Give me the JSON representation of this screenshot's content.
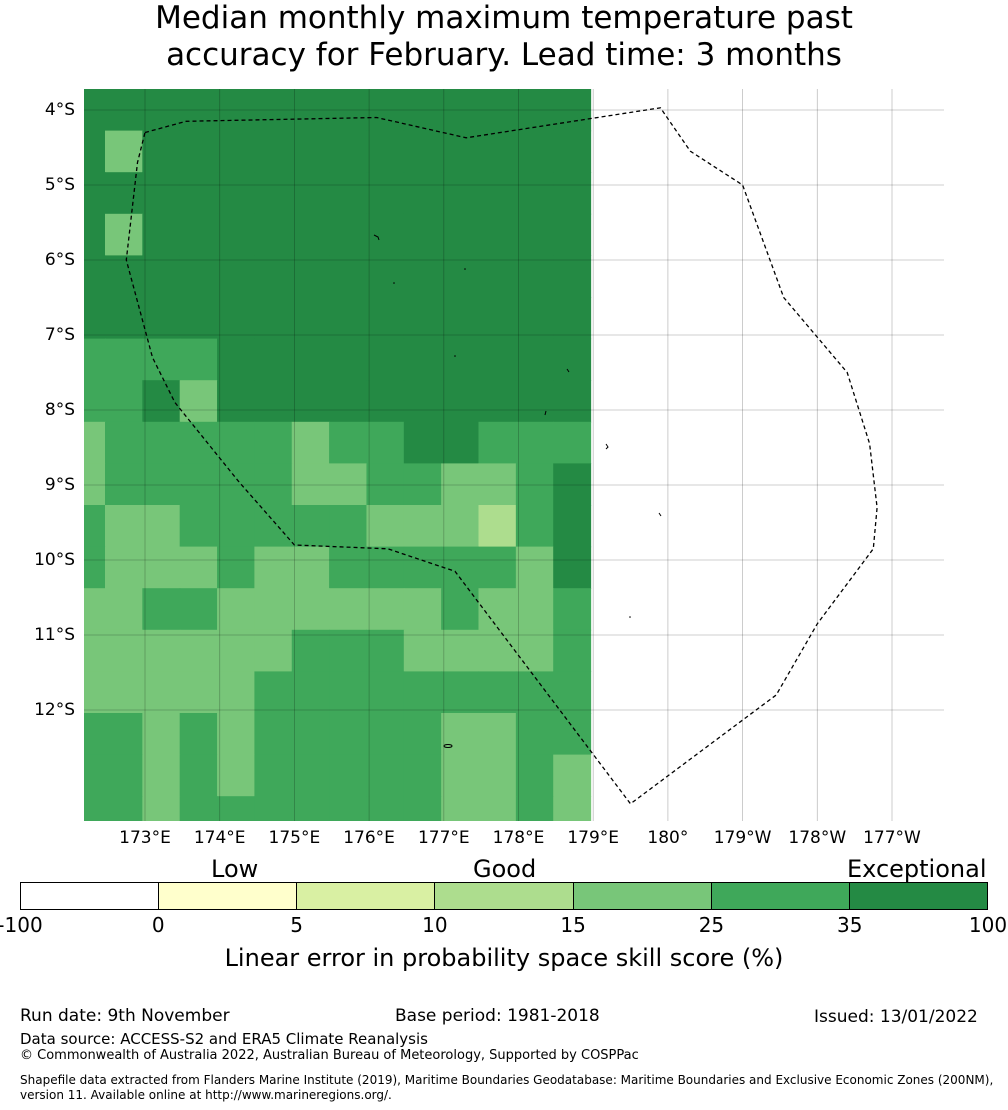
{
  "title": {
    "line1": "Median monthly maximum temperature past",
    "line2": "accuracy for February. Lead time: 3 months"
  },
  "map": {
    "lat_labels": [
      "4°S",
      "5°S",
      "6°S",
      "7°S",
      "8°S",
      "9°S",
      "10°S",
      "11°S",
      "12°S"
    ],
    "lon_labels": [
      "173°E",
      "174°E",
      "175°E",
      "176°E",
      "177°E",
      "178°E",
      "179°E",
      "180°",
      "179°W",
      "178°W",
      "177°W"
    ],
    "grid_colors": [
      "#248a44",
      "#3fa85a",
      "#78c679",
      "#addd8e"
    ],
    "grid": [
      [
        0,
        0,
        0,
        0,
        0,
        0,
        0,
        0,
        0,
        0,
        0,
        0,
        0,
        0
      ],
      [
        0,
        2,
        0,
        0,
        0,
        0,
        0,
        0,
        0,
        0,
        0,
        0,
        0,
        0
      ],
      [
        0,
        0,
        0,
        0,
        0,
        0,
        0,
        0,
        0,
        0,
        0,
        0,
        0,
        0
      ],
      [
        0,
        2,
        0,
        0,
        0,
        0,
        0,
        0,
        0,
        0,
        0,
        0,
        0,
        0
      ],
      [
        0,
        0,
        0,
        0,
        0,
        0,
        0,
        0,
        0,
        0,
        0,
        0,
        0,
        0
      ],
      [
        0,
        0,
        0,
        0,
        0,
        0,
        0,
        0,
        0,
        0,
        0,
        0,
        0,
        0
      ],
      [
        1,
        1,
        1,
        1,
        0,
        0,
        0,
        0,
        0,
        0,
        0,
        0,
        0,
        0
      ],
      [
        1,
        1,
        0,
        2,
        0,
        0,
        0,
        0,
        0,
        0,
        0,
        0,
        0,
        0
      ],
      [
        2,
        1,
        1,
        1,
        1,
        1,
        2,
        1,
        1,
        0,
        0,
        1,
        1,
        1
      ],
      [
        2,
        1,
        1,
        1,
        1,
        1,
        2,
        2,
        1,
        1,
        2,
        2,
        1,
        0
      ],
      [
        1,
        2,
        2,
        1,
        1,
        1,
        1,
        1,
        2,
        2,
        2,
        3,
        1,
        0
      ],
      [
        1,
        2,
        2,
        2,
        1,
        2,
        2,
        1,
        1,
        1,
        1,
        1,
        2,
        0
      ],
      [
        2,
        2,
        1,
        1,
        2,
        2,
        2,
        2,
        2,
        2,
        1,
        2,
        2,
        1
      ],
      [
        2,
        2,
        2,
        2,
        2,
        2,
        1,
        1,
        1,
        2,
        2,
        2,
        2,
        1
      ],
      [
        2,
        2,
        2,
        2,
        2,
        1,
        1,
        1,
        1,
        1,
        1,
        1,
        1,
        1
      ],
      [
        1,
        1,
        2,
        1,
        2,
        1,
        1,
        1,
        1,
        1,
        2,
        2,
        1,
        1
      ],
      [
        1,
        1,
        2,
        1,
        2,
        1,
        1,
        1,
        1,
        1,
        2,
        2,
        1,
        2
      ],
      [
        1,
        1,
        2,
        1,
        1,
        1,
        1,
        1,
        1,
        1,
        2,
        2,
        1,
        2
      ]
    ],
    "eez_boundary": [
      [
        173.0,
        -4.3
      ],
      [
        173.55,
        -4.15
      ],
      [
        176.1,
        -4.1
      ],
      [
        177.3,
        -4.37
      ],
      [
        179.9,
        -3.97
      ],
      [
        -179.7,
        -4.55
      ],
      [
        -179.0,
        -5.0
      ],
      [
        -178.45,
        -6.5
      ],
      [
        -177.6,
        -7.5
      ],
      [
        -177.3,
        -8.45
      ],
      [
        -177.2,
        -9.3
      ],
      [
        -177.25,
        -9.85
      ],
      [
        -178.0,
        -10.85
      ],
      [
        -178.55,
        -11.8
      ],
      [
        179.5,
        -13.25
      ],
      [
        177.15,
        -10.15
      ],
      [
        176.25,
        -9.85
      ],
      [
        175.0,
        -9.8
      ],
      [
        174.25,
        -8.95
      ],
      [
        173.4,
        -7.9
      ],
      [
        173.1,
        -7.3
      ],
      [
        172.75,
        -6.0
      ],
      [
        172.9,
        -4.7
      ],
      [
        173.0,
        -4.3
      ]
    ]
  },
  "legend": {
    "categories": [
      "Low",
      "Good",
      "Exceptional"
    ],
    "colors": [
      "#ffffff",
      "#ffffcc",
      "#d9f0a3",
      "#addd8e",
      "#78c679",
      "#3fa85a",
      "#248a44"
    ],
    "ticks": [
      "-100",
      "0",
      "5",
      "10",
      "15",
      "25",
      "35",
      "100"
    ],
    "axis_label": "Linear error in probability space skill score (%)"
  },
  "footer": {
    "run_date": "Run date: 9th November",
    "base_period": "Base period: 1981-2018",
    "issued": "Issued: 13/01/2022",
    "data_source": "Data source: ACCESS-S2 and ERA5 Climate Reanalysis",
    "copyright": "© Commonwealth of Australia 2022, Australian Bureau of Meteorology, Supported by COSPPac",
    "shapefile_line1": "Shapefile data extracted from Flanders Marine Institute (2019), Maritime Boundaries Geodatabase: Maritime Boundaries and Exclusive Economic Zones (200NM),",
    "shapefile_line2": "version 11. Available online at http://www.marineregions.org/."
  }
}
